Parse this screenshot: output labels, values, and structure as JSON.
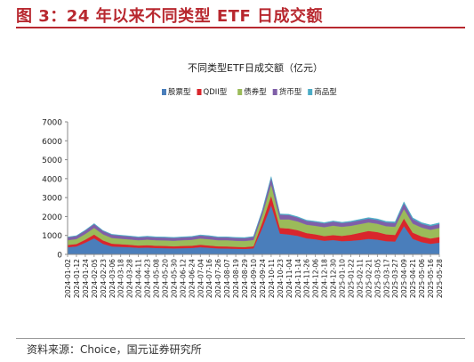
{
  "figure": {
    "title": "图 3：24 年以来不同类型 ETF 日成交额",
    "source": "资料来源：Choice，国元证券研究所"
  },
  "colors": {
    "title_red": "#b8282f",
    "stock": "#4a7ebb",
    "qdii": "#d9262c",
    "bond": "#9bbb59",
    "money": "#7f5fa8",
    "commodity": "#4bacc6"
  },
  "chart_data": {
    "type": "area",
    "stacked": true,
    "title": "不同类型ETF日成交额（亿元）",
    "legend_position": "top",
    "ylim": [
      0,
      7000
    ],
    "yticks": [
      0,
      1000,
      2000,
      3000,
      4000,
      5000,
      6000,
      7000
    ],
    "grid": false,
    "categories": [
      "2024-01-02",
      "2024-01-12",
      "2024-01-24",
      "2024-02-05",
      "2024-02-23",
      "2024-03-06",
      "2024-03-18",
      "2024-03-28",
      "2024-04-11",
      "2024-04-23",
      "2024-05-08",
      "2024-05-20",
      "2024-05-30",
      "2024-06-12",
      "2024-06-24",
      "2024-07-04",
      "2024-07-16",
      "2024-07-26",
      "2024-08-07",
      "2024-08-19",
      "2024-08-29",
      "2024-09-10",
      "2024-09-24",
      "2024-10-11",
      "2024-10-23",
      "2024-11-04",
      "2024-11-14",
      "2024-11-26",
      "2024-12-06",
      "2024-12-18",
      "2024-12-30",
      "2025-01-10",
      "2025-01-22",
      "2025-02-11",
      "2025-02-21",
      "2025-03-05",
      "2025-03-17",
      "2025-03-27",
      "2025-04-09",
      "2025-04-21",
      "2025-05-06",
      "2025-05-16",
      "2025-05-28"
    ],
    "series": [
      {
        "name": "股票型",
        "color": "#4a7ebb",
        "values": [
          380,
          420,
          620,
          850,
          560,
          420,
          400,
          380,
          350,
          360,
          340,
          330,
          320,
          330,
          340,
          380,
          350,
          320,
          310,
          300,
          290,
          320,
          1400,
          2600,
          1100,
          1050,
          980,
          850,
          800,
          720,
          760,
          700,
          720,
          760,
          820,
          780,
          700,
          680,
          1500,
          820,
          650,
          560,
          620
        ]
      },
      {
        "name": "QDII型",
        "color": "#d9262c",
        "values": [
          120,
          130,
          160,
          200,
          180,
          150,
          140,
          130,
          120,
          130,
          120,
          120,
          110,
          120,
          120,
          130,
          120,
          110,
          110,
          100,
          100,
          110,
          300,
          500,
          300,
          320,
          300,
          280,
          260,
          250,
          260,
          280,
          320,
          380,
          420,
          400,
          360,
          350,
          400,
          330,
          300,
          280,
          300
        ]
      },
      {
        "name": "债券型",
        "color": "#9bbb59",
        "values": [
          250,
          260,
          300,
          350,
          320,
          300,
          290,
          280,
          280,
          290,
          290,
          290,
          290,
          300,
          310,
          330,
          330,
          320,
          330,
          320,
          320,
          330,
          400,
          600,
          450,
          480,
          460,
          440,
          450,
          470,
          500,
          480,
          470,
          460,
          450,
          440,
          430,
          430,
          500,
          480,
          470,
          460,
          480
        ]
      },
      {
        "name": "货币型",
        "color": "#7f5fa8",
        "values": [
          150,
          160,
          180,
          200,
          180,
          170,
          160,
          160,
          150,
          150,
          150,
          150,
          150,
          150,
          150,
          160,
          160,
          150,
          150,
          150,
          150,
          160,
          200,
          350,
          250,
          230,
          210,
          200,
          200,
          200,
          210,
          200,
          200,
          200,
          200,
          200,
          200,
          200,
          300,
          230,
          200,
          200,
          210
        ]
      },
      {
        "name": "商品型",
        "color": "#4bacc6",
        "values": [
          20,
          20,
          25,
          30,
          25,
          25,
          25,
          25,
          30,
          35,
          30,
          30,
          30,
          30,
          30,
          30,
          30,
          30,
          30,
          30,
          30,
          30,
          40,
          60,
          40,
          40,
          40,
          40,
          40,
          40,
          40,
          40,
          45,
          50,
          55,
          55,
          55,
          60,
          80,
          70,
          60,
          55,
          55
        ]
      }
    ]
  }
}
